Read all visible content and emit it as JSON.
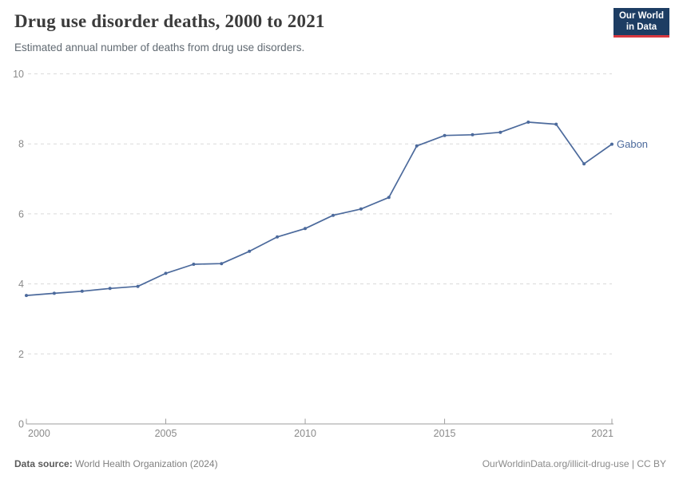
{
  "header": {
    "title": "Drug use disorder deaths, 2000 to 2021",
    "subtitle": "Estimated annual number of deaths from drug use disorders.",
    "logo": {
      "line1": "Our World",
      "line2": "in Data"
    }
  },
  "chart_data": {
    "type": "line",
    "title": "Drug use disorder deaths, 2000 to 2021",
    "xlabel": "",
    "ylabel": "",
    "x": [
      2000,
      2001,
      2002,
      2003,
      2004,
      2005,
      2006,
      2007,
      2008,
      2009,
      2010,
      2011,
      2012,
      2013,
      2014,
      2015,
      2016,
      2017,
      2018,
      2019,
      2020,
      2021
    ],
    "series": [
      {
        "name": "Gabon",
        "color": "#4c6a9c",
        "values": [
          3.67,
          3.73,
          3.79,
          3.87,
          3.93,
          4.3,
          4.56,
          4.58,
          4.93,
          5.34,
          5.58,
          5.96,
          6.14,
          6.47,
          7.94,
          8.24,
          8.26,
          8.33,
          8.62,
          8.56,
          7.43,
          7.99
        ]
      }
    ],
    "xlim": [
      2000,
      2021
    ],
    "ylim": [
      0,
      10
    ],
    "yticks": [
      0,
      2,
      4,
      6,
      8,
      10
    ],
    "xticks": [
      2000,
      2005,
      2010,
      2015,
      2021
    ],
    "grid": "dashed-horizontal",
    "legend_position": "end-of-line-label",
    "end_label": "Gabon"
  },
  "footer": {
    "data_source_label": "Data source:",
    "data_source_value": "World Health Organization (2024)",
    "credit": "OurWorldinData.org/illicit-drug-use | CC BY"
  },
  "colors": {
    "accent": "#4c6a9c",
    "grid": "#dadada",
    "axis": "#9e9e9e",
    "tick_text": "#8a8a8a",
    "logo_bg": "#1d3d63",
    "logo_red": "#d7373f"
  }
}
